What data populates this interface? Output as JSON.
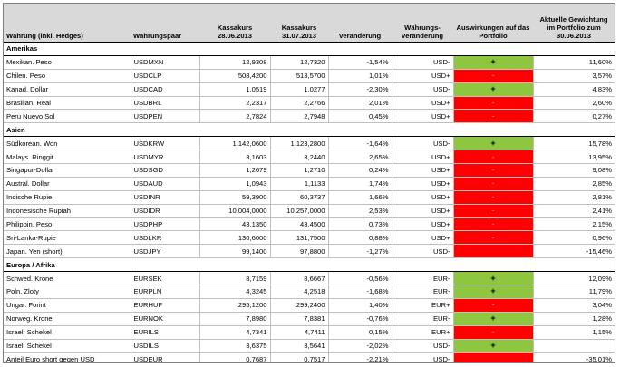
{
  "headers": {
    "currency": "Währung (inkl. Hedges)",
    "pair": "Währungspaar",
    "rate1": "Kassakurs 28.06.2013",
    "rate2": "Kassakurs 31.07.2013",
    "change": "Veränderung",
    "fxchange": "Währungs-veränderung",
    "impact": "Auswirkungen auf das Portfolio",
    "weight": "Aktuelle Gewichtung im Portfolio zum 30.06.2013"
  },
  "sections": [
    {
      "title": "Amerikas",
      "rows": [
        {
          "currency": "Mexikan. Peso",
          "pair": "USDMXN",
          "rate1": "12,9308",
          "rate2": "12,7320",
          "change": "-1,54%",
          "fx": "USD-",
          "impact": "+",
          "weight": "11,60%"
        },
        {
          "currency": "Chilen. Peso",
          "pair": "USDCLP",
          "rate1": "508,4200",
          "rate2": "513,5700",
          "change": "1,01%",
          "fx": "USD+",
          "impact": "-",
          "weight": "3,57%"
        },
        {
          "currency": "Kanad. Dollar",
          "pair": "USDCAD",
          "rate1": "1,0519",
          "rate2": "1,0277",
          "change": "-2,30%",
          "fx": "USD-",
          "impact": "+",
          "weight": "4,83%"
        },
        {
          "currency": "Brasilian. Real",
          "pair": "USDBRL",
          "rate1": "2,2317",
          "rate2": "2,2766",
          "change": "2,01%",
          "fx": "USD+",
          "impact": "-",
          "weight": "2,60%"
        },
        {
          "currency": "Peru Nuevo Sol",
          "pair": "USDPEN",
          "rate1": "2,7824",
          "rate2": "2,7948",
          "change": "0,45%",
          "fx": "USD+",
          "impact": "-",
          "weight": "0,27%"
        }
      ]
    },
    {
      "title": "Asien",
      "rows": [
        {
          "currency": "Südkorean. Won",
          "pair": "USDKRW",
          "rate1": "1.142,0600",
          "rate2": "1.123,2800",
          "change": "-1,64%",
          "fx": "USD-",
          "impact": "+",
          "weight": "15,78%"
        },
        {
          "currency": "Malays. Ringgit",
          "pair": "USDMYR",
          "rate1": "3,1603",
          "rate2": "3,2440",
          "change": "2,65%",
          "fx": "USD+",
          "impact": "-",
          "weight": "13,95%"
        },
        {
          "currency": "Singapur-Dollar",
          "pair": "USDSGD",
          "rate1": "1,2679",
          "rate2": "1,2710",
          "change": "0,24%",
          "fx": "USD+",
          "impact": "-",
          "weight": "9,08%"
        },
        {
          "currency": "Austral. Dollar",
          "pair": "USDAUD",
          "rate1": "1,0943",
          "rate2": "1,1133",
          "change": "1,74%",
          "fx": "USD+",
          "impact": "-",
          "weight": "2,85%"
        },
        {
          "currency": "Indische Rupie",
          "pair": "USDINR",
          "rate1": "59,3900",
          "rate2": "60,3737",
          "change": "1,66%",
          "fx": "USD+",
          "impact": "-",
          "weight": "2,81%"
        },
        {
          "currency": "Indonesische Rupiah",
          "pair": "USDIDR",
          "rate1": "10.004,0000",
          "rate2": "10.257,0000",
          "change": "2,53%",
          "fx": "USD+",
          "impact": "-",
          "weight": "2,41%"
        },
        {
          "currency": "Philippin. Peso",
          "pair": "USDPHP",
          "rate1": "43,1350",
          "rate2": "43,4500",
          "change": "0,73%",
          "fx": "USD+",
          "impact": "-",
          "weight": "2,15%"
        },
        {
          "currency": "Sri-Lanka-Rupie",
          "pair": "USDLKR",
          "rate1": "130,6000",
          "rate2": "131,7500",
          "change": "0,88%",
          "fx": "USD+",
          "impact": "-",
          "weight": "0,96%"
        },
        {
          "currency": "Japan. Yen (short)",
          "pair": "USDJPY",
          "rate1": "99,1400",
          "rate2": "97,8800",
          "change": "-1,27%",
          "fx": "USD-",
          "impact": "",
          "weight": "-15,46%"
        }
      ]
    },
    {
      "title": "Europa / Afrika",
      "rows": [
        {
          "currency": "Schwed. Krone",
          "pair": "EURSEK",
          "rate1": "8,7159",
          "rate2": "8,6667",
          "change": "-0,56%",
          "fx": "EUR-",
          "impact": "+",
          "weight": "12,09%"
        },
        {
          "currency": "Poln. Zloty",
          "pair": "EURPLN",
          "rate1": "4,3245",
          "rate2": "4,2518",
          "change": "-1,68%",
          "fx": "EUR-",
          "impact": "+",
          "weight": "11,79%"
        },
        {
          "currency": "Ungar. Forint",
          "pair": "EURHUF",
          "rate1": "295,1200",
          "rate2": "299,2400",
          "change": "1,40%",
          "fx": "EUR+",
          "impact": "-",
          "weight": "3,04%"
        },
        {
          "currency": "Norweg. Krone",
          "pair": "EURNOK",
          "rate1": "7,8980",
          "rate2": "7,8381",
          "change": "-0,76%",
          "fx": "EUR-",
          "impact": "+",
          "weight": "1,28%"
        },
        {
          "currency": "Israel. Schekel",
          "pair": "EURILS",
          "rate1": "4,7341",
          "rate2": "4,7411",
          "change": "0,15%",
          "fx": "EUR+",
          "impact": "-",
          "weight": "1,15%"
        },
        {
          "currency": "Israel. Schekel",
          "pair": "USDILS",
          "rate1": "3,6375",
          "rate2": "3,5641",
          "change": "-2,02%",
          "fx": "USD-",
          "impact": "+",
          "weight": ""
        },
        {
          "currency": "Anteil Euro short gegen USD",
          "pair": "USDEUR",
          "rate1": "0,7687",
          "rate2": "0,7517",
          "change": "-2,21%",
          "fx": "USD-",
          "impact": "",
          "weight": "-35,01%"
        }
      ]
    }
  ],
  "colors": {
    "positive": "#8ec63f",
    "negative": "#ff0000",
    "header_bg": "#d9d9d9"
  }
}
